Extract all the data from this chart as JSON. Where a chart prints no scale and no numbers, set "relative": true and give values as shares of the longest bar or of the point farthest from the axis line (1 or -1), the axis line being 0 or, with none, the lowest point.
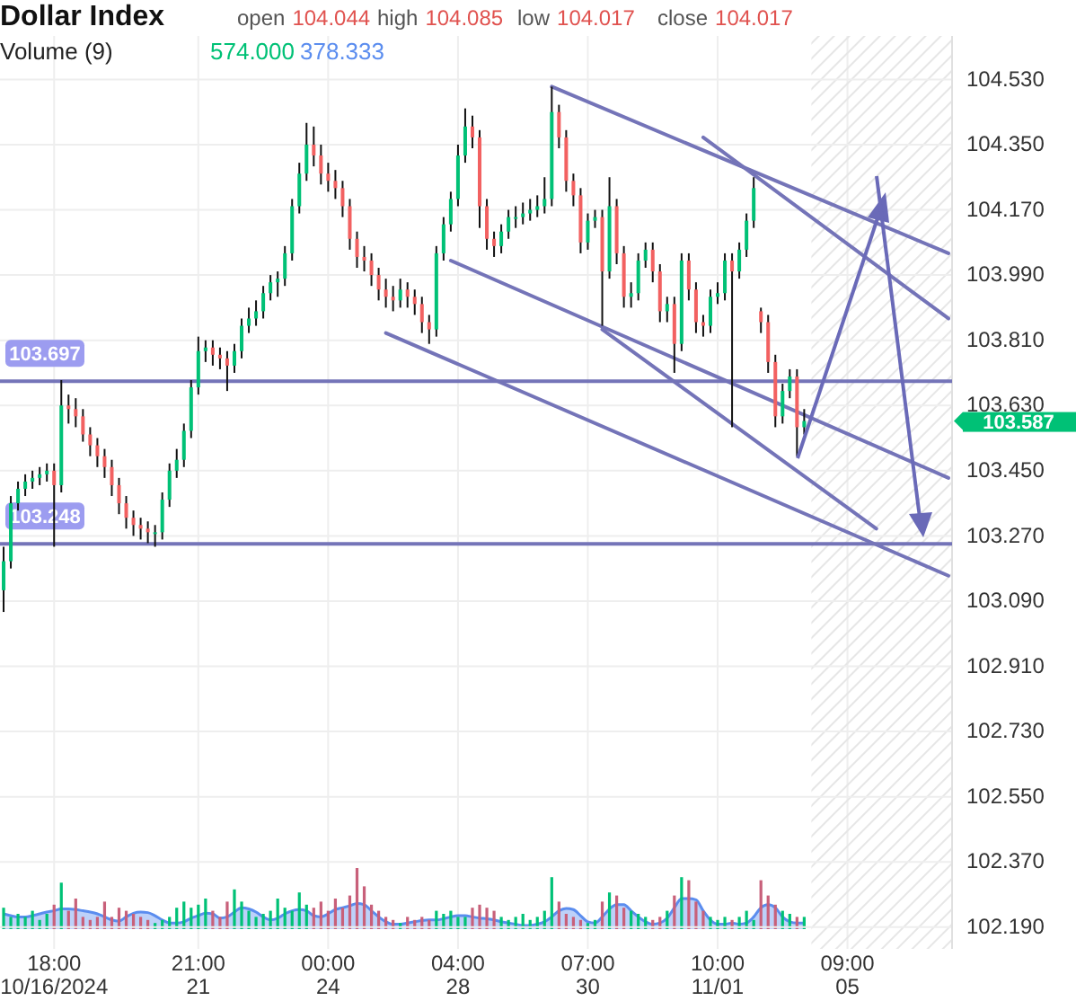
{
  "chart_data": [
    {
      "type": "candlestick",
      "title": "Dollar Index",
      "tick_labels": "y",
      "annotations": [
        "open 104.044",
        "high 104.085",
        "low 104.017",
        "close 104.017",
        "103.587"
      ],
      "categories": [
        null,
        null,
        null,
        null,
        null,
        null,
        null,
        null,
        null,
        null,
        null,
        null,
        null,
        null,
        null,
        null,
        null,
        null,
        null,
        null,
        null,
        null,
        null,
        null,
        null,
        null,
        null,
        null,
        null,
        null,
        null,
        null,
        null,
        null,
        null,
        null,
        null,
        null,
        null,
        null,
        null,
        null,
        null,
        null,
        null,
        null,
        null,
        null,
        null,
        null,
        null,
        null,
        null,
        null,
        null,
        null,
        null,
        null,
        null,
        null,
        null,
        null,
        null,
        null,
        null,
        null,
        null,
        null,
        null,
        null,
        null,
        null,
        null,
        null,
        null,
        null,
        null,
        null,
        null,
        null,
        null,
        null,
        null,
        null,
        null,
        null,
        null,
        null,
        null,
        null,
        null,
        null,
        null,
        null,
        null,
        null,
        null,
        null,
        null,
        null,
        null,
        null,
        null,
        null,
        null,
        null,
        null,
        null,
        null,
        null,
        null,
        null,
        null,
        null,
        null,
        null,
        null,
        null,
        null,
        null,
        null,
        null,
        null,
        null,
        null,
        null,
        null,
        null,
        null,
        null,
        null,
        null
      ],
      "ohlc": [
        [
          103.12,
          103.24,
          103.06,
          103.2
        ],
        [
          103.2,
          103.38,
          103.18,
          103.36
        ],
        [
          103.36,
          103.42,
          103.34,
          103.4
        ],
        [
          103.4,
          103.44,
          103.38,
          103.42
        ],
        [
          103.42,
          103.45,
          103.4,
          103.43
        ],
        [
          103.43,
          103.46,
          103.41,
          103.44
        ],
        [
          103.44,
          103.47,
          103.42,
          103.45
        ],
        [
          103.45,
          103.47,
          103.24,
          103.41
        ],
        [
          103.41,
          103.7,
          103.39,
          103.63
        ],
        [
          103.63,
          103.66,
          103.58,
          103.62
        ],
        [
          103.62,
          103.65,
          103.57,
          103.6
        ],
        [
          103.6,
          103.62,
          103.53,
          103.55
        ],
        [
          103.55,
          103.57,
          103.49,
          103.52
        ],
        [
          103.52,
          103.54,
          103.46,
          103.49
        ],
        [
          103.49,
          103.51,
          103.43,
          103.46
        ],
        [
          103.46,
          103.48,
          103.38,
          103.41
        ],
        [
          103.41,
          103.43,
          103.33,
          103.36
        ],
        [
          103.36,
          103.38,
          103.29,
          103.32
        ],
        [
          103.32,
          103.34,
          103.27,
          103.3
        ],
        [
          103.3,
          103.32,
          103.26,
          103.29
        ],
        [
          103.29,
          103.31,
          103.25,
          103.28
        ],
        [
          103.28,
          103.3,
          103.24,
          103.28
        ],
        [
          103.28,
          103.39,
          103.26,
          103.37
        ],
        [
          103.37,
          103.47,
          103.35,
          103.45
        ],
        [
          103.45,
          103.51,
          103.43,
          103.48
        ],
        [
          103.48,
          103.58,
          103.46,
          103.56
        ],
        [
          103.56,
          103.7,
          103.54,
          103.68
        ],
        [
          103.68,
          103.82,
          103.66,
          103.78
        ],
        [
          103.78,
          103.81,
          103.75,
          103.79
        ],
        [
          103.79,
          103.81,
          103.74,
          103.77
        ],
        [
          103.77,
          103.79,
          103.73,
          103.76
        ],
        [
          103.76,
          103.78,
          103.67,
          103.74
        ],
        [
          103.74,
          103.8,
          103.72,
          103.78
        ],
        [
          103.78,
          103.87,
          103.76,
          103.85
        ],
        [
          103.85,
          103.9,
          103.83,
          103.87
        ],
        [
          103.87,
          103.92,
          103.85,
          103.89
        ],
        [
          103.89,
          103.96,
          103.87,
          103.94
        ],
        [
          103.94,
          103.99,
          103.92,
          103.97
        ],
        [
          103.97,
          104.0,
          103.93,
          103.98
        ],
        [
          103.98,
          104.07,
          103.96,
          104.05
        ],
        [
          104.05,
          104.2,
          104.03,
          104.18
        ],
        [
          104.18,
          104.3,
          104.16,
          104.27
        ],
        [
          104.27,
          104.41,
          104.25,
          104.35
        ],
        [
          104.35,
          104.4,
          104.29,
          104.32
        ],
        [
          104.32,
          104.35,
          104.24,
          104.27
        ],
        [
          104.27,
          104.3,
          104.22,
          104.25
        ],
        [
          104.25,
          104.28,
          104.2,
          104.23
        ],
        [
          104.23,
          104.25,
          104.15,
          104.18
        ],
        [
          104.18,
          104.2,
          104.06,
          104.09
        ],
        [
          104.09,
          104.11,
          104.01,
          104.04
        ],
        [
          104.04,
          104.07,
          104.0,
          104.03
        ],
        [
          104.03,
          104.05,
          103.96,
          103.99
        ],
        [
          103.99,
          104.01,
          103.92,
          103.95
        ],
        [
          103.95,
          103.98,
          103.9,
          103.93
        ],
        [
          103.93,
          103.96,
          103.89,
          103.92
        ],
        [
          103.92,
          103.98,
          103.9,
          103.95
        ],
        [
          103.95,
          103.97,
          103.9,
          103.93
        ],
        [
          103.93,
          103.95,
          103.88,
          103.91
        ],
        [
          103.91,
          103.93,
          103.83,
          103.86
        ],
        [
          103.86,
          103.88,
          103.8,
          103.84
        ],
        [
          103.84,
          104.07,
          103.82,
          104.05
        ],
        [
          104.05,
          104.15,
          104.03,
          104.13
        ],
        [
          104.13,
          104.22,
          104.11,
          104.2
        ],
        [
          104.2,
          104.35,
          104.18,
          104.32
        ],
        [
          104.32,
          104.45,
          104.3,
          104.4
        ],
        [
          104.4,
          104.43,
          104.34,
          104.37
        ],
        [
          104.37,
          104.39,
          104.12,
          104.18
        ],
        [
          104.18,
          104.2,
          104.06,
          104.09
        ],
        [
          104.09,
          104.11,
          104.04,
          104.07
        ],
        [
          104.07,
          104.13,
          104.05,
          104.11
        ],
        [
          104.11,
          104.17,
          104.09,
          104.15
        ],
        [
          104.15,
          104.18,
          104.12,
          104.15
        ],
        [
          104.15,
          104.19,
          104.13,
          104.16
        ],
        [
          104.16,
          104.2,
          104.14,
          104.17
        ],
        [
          104.17,
          104.21,
          104.15,
          104.18
        ],
        [
          104.18,
          104.26,
          104.16,
          104.2
        ],
        [
          104.2,
          104.51,
          104.18,
          104.44
        ],
        [
          104.44,
          104.46,
          104.34,
          104.37
        ],
        [
          104.37,
          104.39,
          104.22,
          104.25
        ],
        [
          104.25,
          104.27,
          104.18,
          104.21
        ],
        [
          104.21,
          104.23,
          104.05,
          104.08
        ],
        [
          104.08,
          104.16,
          104.06,
          104.14
        ],
        [
          104.14,
          104.17,
          104.12,
          104.15
        ],
        [
          104.15,
          104.17,
          103.85,
          104.0
        ],
        [
          104.0,
          104.26,
          103.98,
          104.18
        ],
        [
          104.18,
          104.2,
          104.02,
          104.05
        ],
        [
          104.05,
          104.07,
          103.9,
          103.93
        ],
        [
          103.93,
          103.97,
          103.9,
          103.94
        ],
        [
          103.94,
          104.05,
          103.92,
          104.03
        ],
        [
          104.03,
          104.08,
          104.01,
          104.06
        ],
        [
          104.06,
          104.08,
          103.97,
          104.0
        ],
        [
          104.0,
          104.02,
          103.86,
          103.89
        ],
        [
          103.89,
          103.93,
          103.86,
          103.91
        ],
        [
          103.91,
          103.93,
          103.72,
          103.8
        ],
        [
          103.8,
          104.05,
          103.78,
          104.03
        ],
        [
          104.03,
          104.05,
          103.92,
          103.95
        ],
        [
          103.95,
          103.97,
          103.83,
          103.86
        ],
        [
          103.86,
          103.88,
          103.82,
          103.85
        ],
        [
          103.85,
          103.95,
          103.83,
          103.93
        ],
        [
          103.93,
          103.97,
          103.91,
          103.94
        ],
        [
          103.94,
          104.05,
          103.92,
          104.03
        ],
        [
          104.03,
          104.05,
          103.57,
          104.0
        ],
        [
          104.0,
          104.08,
          103.98,
          104.06
        ],
        [
          104.06,
          104.16,
          104.04,
          104.14
        ],
        [
          104.14,
          104.26,
          104.12,
          104.23
        ],
        [
          103.89,
          103.9,
          103.83,
          103.86
        ],
        [
          103.86,
          103.88,
          103.72,
          103.75
        ],
        [
          103.75,
          103.77,
          103.57,
          103.6
        ],
        [
          103.6,
          103.69,
          103.58,
          103.67
        ],
        [
          103.67,
          103.73,
          103.65,
          103.71
        ],
        [
          103.71,
          103.73,
          103.49,
          103.57
        ],
        [
          103.57,
          103.62,
          103.55,
          103.587
        ],
        null,
        null,
        null,
        null,
        null,
        null,
        null,
        null,
        null,
        null,
        null,
        null,
        null,
        null,
        null,
        null,
        null,
        null,
        null,
        null
      ],
      "colors": [
        "#00c176",
        "#00c176",
        "#00c176",
        "#00c176",
        "#00c176",
        "#00c176",
        "#00c176",
        "#f26161",
        "#00c176",
        "#f26161",
        "#f26161",
        "#f26161",
        "#f26161",
        "#f26161",
        "#f26161",
        "#f26161",
        "#f26161",
        "#f26161",
        "#f26161",
        "#f26161",
        "#f26161",
        "#00c176",
        "#00c176",
        "#00c176",
        "#00c176",
        "#00c176",
        "#00c176",
        "#00c176",
        "#00c176",
        "#f26161",
        "#f26161",
        "#f26161",
        "#00c176",
        "#00c176",
        "#00c176",
        "#00c176",
        "#00c176",
        "#00c176",
        "#00c176",
        "#00c176",
        "#00c176",
        "#00c176",
        "#00c176",
        "#f26161",
        "#f26161",
        "#f26161",
        "#f26161",
        "#f26161",
        "#f26161",
        "#f26161",
        "#f26161",
        "#f26161",
        "#f26161",
        "#f26161",
        "#f26161",
        "#00c176",
        "#f26161",
        "#f26161",
        "#f26161",
        "#f26161",
        "#00c176",
        "#00c176",
        "#00c176",
        "#00c176",
        "#00c176",
        "#f26161",
        "#f26161",
        "#f26161",
        "#f26161",
        "#00c176",
        "#00c176",
        "#00c176",
        "#00c176",
        "#00c176",
        "#00c176",
        "#00c176",
        "#00c176",
        "#f26161",
        "#f26161",
        "#f26161",
        "#f26161",
        "#00c176",
        "#00c176",
        "#f26161",
        "#00c176",
        "#f26161",
        "#f26161",
        "#00c176",
        "#00c176",
        "#00c176",
        "#f26161",
        "#f26161",
        "#00c176",
        "#f26161",
        "#00c176",
        "#f26161",
        "#f26161",
        "#f26161",
        "#00c176",
        "#00c176",
        "#00c176",
        "#f26161",
        "#00c176",
        "#00c176",
        "#00c176",
        "#f26161",
        "#f26161",
        "#f26161",
        "#00c176",
        "#00c176",
        "#f26161",
        "#00c176",
        null,
        null,
        null,
        null,
        null,
        null,
        null,
        null,
        null,
        null,
        null,
        null,
        null,
        null,
        null,
        null,
        null,
        null,
        null,
        null
      ],
      "series": [
        {
          "type": "line",
          "color": "#7474b8",
          "values": [
            null,
            null,
            null,
            null,
            null,
            null,
            null,
            null,
            null,
            null,
            null,
            null,
            null,
            null,
            null,
            null,
            null,
            null,
            null,
            null,
            null,
            null,
            null,
            null,
            null,
            null,
            null,
            null,
            null,
            null,
            null,
            null,
            null,
            null,
            null,
            null,
            null,
            null,
            null,
            null,
            null,
            null,
            null,
            null,
            null,
            null,
            null,
            null,
            null,
            null,
            null,
            null,
            null,
            null,
            null,
            null,
            null,
            null,
            null,
            null,
            null,
            null,
            null,
            null,
            null,
            null,
            null,
            null,
            null,
            null,
            null,
            null,
            null,
            null,
            null,
            null,
            104.51,
            null,
            null,
            null,
            null,
            null,
            null,
            null,
            null,
            null,
            null,
            null,
            null,
            null,
            null,
            null,
            null,
            null,
            null,
            null,
            null,
            null,
            null,
            null,
            null,
            null,
            null,
            null,
            null,
            null,
            null,
            null,
            null,
            null,
            null,
            null,
            null,
            null,
            null,
            null,
            null,
            null,
            null,
            null,
            null,
            null,
            null,
            null,
            null,
            null,
            null,
            null,
            null,
            null,
            null,
            104.05
          ]
        },
        {
          "type": "line",
          "color": "#7474b8",
          "values": [
            null,
            null,
            null,
            null,
            null,
            null,
            null,
            null,
            null,
            null,
            null,
            null,
            null,
            null,
            null,
            null,
            null,
            null,
            null,
            null,
            null,
            null,
            null,
            null,
            null,
            null,
            null,
            null,
            null,
            null,
            null,
            null,
            null,
            null,
            null,
            null,
            null,
            null,
            null,
            null,
            null,
            null,
            null,
            null,
            null,
            null,
            null,
            null,
            null,
            null,
            null,
            null,
            null,
            null,
            null,
            null,
            null,
            null,
            null,
            null,
            null,
            null,
            null,
            null,
            null,
            null,
            null,
            null,
            null,
            null,
            null,
            null,
            null,
            null,
            null,
            null,
            null,
            null,
            null,
            null,
            null,
            null,
            null,
            null,
            null,
            null,
            null,
            null,
            null,
            null,
            null,
            null,
            null,
            null,
            null,
            null,
            null,
            104.37,
            null,
            null,
            null,
            null,
            null,
            null,
            null,
            null,
            null,
            null,
            null,
            null,
            null,
            null,
            null,
            null,
            null,
            null,
            null,
            null,
            null,
            null,
            null,
            null,
            null,
            null,
            null,
            null,
            null,
            null,
            null,
            null,
            null,
            103.87
          ]
        },
        {
          "type": "line",
          "color": "#7474b8",
          "values": [
            null,
            null,
            null,
            null,
            null,
            null,
            null,
            null,
            null,
            null,
            null,
            null,
            null,
            null,
            null,
            null,
            null,
            null,
            null,
            null,
            null,
            null,
            null,
            null,
            null,
            null,
            null,
            null,
            null,
            null,
            null,
            null,
            null,
            null,
            null,
            null,
            null,
            null,
            null,
            null,
            null,
            null,
            null,
            null,
            null,
            null,
            null,
            null,
            null,
            null,
            null,
            null,
            null,
            null,
            null,
            null,
            null,
            null,
            null,
            null,
            null,
            null,
            104.03,
            null,
            null,
            null,
            null,
            null,
            null,
            null,
            null,
            null,
            null,
            null,
            null,
            null,
            null,
            null,
            null,
            null,
            null,
            null,
            null,
            null,
            null,
            null,
            null,
            null,
            null,
            null,
            null,
            null,
            null,
            null,
            null,
            null,
            null,
            null,
            null,
            null,
            null,
            null,
            null,
            null,
            null,
            null,
            null,
            null,
            null,
            null,
            null,
            null,
            null,
            null,
            null,
            null,
            null,
            null,
            null,
            null,
            null,
            null,
            null,
            null,
            null,
            null,
            null,
            null,
            null,
            null,
            null,
            103.43
          ]
        },
        {
          "type": "line",
          "color": "#7474b8",
          "values": [
            null,
            null,
            null,
            null,
            null,
            null,
            null,
            null,
            null,
            null,
            null,
            null,
            null,
            null,
            null,
            null,
            null,
            null,
            null,
            null,
            null,
            null,
            null,
            null,
            null,
            null,
            null,
            null,
            null,
            null,
            null,
            null,
            null,
            null,
            null,
            null,
            null,
            null,
            null,
            null,
            null,
            null,
            null,
            null,
            null,
            null,
            null,
            null,
            null,
            null,
            null,
            null,
            null,
            null,
            null,
            null,
            null,
            null,
            null,
            null,
            null,
            null,
            null,
            null,
            null,
            null,
            null,
            null,
            null,
            null,
            null,
            null,
            null,
            null,
            null,
            null,
            null,
            null,
            null,
            null,
            null,
            null,
            null,
            103.84,
            null,
            null,
            null,
            null,
            null,
            null,
            null,
            null,
            null,
            null,
            null,
            null,
            null,
            null,
            null,
            null,
            null,
            null,
            null,
            null,
            null,
            null,
            null,
            null,
            null,
            null,
            null,
            null,
            null,
            null,
            null,
            null,
            null,
            null,
            null,
            null,
            null,
            103.29,
            null,
            null,
            null,
            null,
            null,
            null,
            null,
            null,
            null,
            null
          ]
        },
        {
          "type": "line",
          "color": "#7474b8",
          "values": [
            null,
            null,
            null,
            null,
            null,
            null,
            null,
            null,
            null,
            null,
            null,
            null,
            null,
            null,
            null,
            null,
            null,
            null,
            null,
            null,
            null,
            null,
            null,
            null,
            null,
            null,
            null,
            null,
            null,
            null,
            null,
            null,
            null,
            null,
            null,
            null,
            null,
            null,
            null,
            null,
            null,
            null,
            null,
            null,
            null,
            null,
            null,
            null,
            null,
            null,
            null,
            null,
            null,
            103.83,
            null,
            null,
            null,
            null,
            null,
            null,
            null,
            null,
            null,
            null,
            null,
            null,
            null,
            null,
            null,
            null,
            null,
            null,
            null,
            null,
            null,
            null,
            null,
            null,
            null,
            null,
            null,
            null,
            null,
            null,
            null,
            null,
            null,
            null,
            null,
            null,
            null,
            null,
            null,
            null,
            null,
            null,
            null,
            null,
            null,
            null,
            null,
            null,
            null,
            null,
            null,
            null,
            null,
            null,
            null,
            null,
            null,
            null,
            null,
            null,
            null,
            null,
            null,
            null,
            null,
            null,
            null,
            null,
            null,
            null,
            null,
            null,
            null,
            null,
            null,
            null,
            null,
            103.16
          ]
        }
      ],
      "ref_lines": [
        {
          "axis": "y",
          "value": 103.697,
          "label": "103.697",
          "color": "#7474b8"
        },
        {
          "axis": "y",
          "value": 103.248,
          "label": "103.248",
          "color": "#7474b8"
        }
      ],
      "ylim": [
        102.13,
        104.65
      ],
      "yticks": [
        {
          "value": 104.53,
          "label": "104.530"
        },
        {
          "value": 104.35,
          "label": "104.350"
        },
        {
          "value": 104.17,
          "label": "104.170"
        },
        {
          "value": 103.99,
          "label": "103.990"
        },
        {
          "value": 103.81,
          "label": "103.810"
        },
        {
          "value": 103.63,
          "label": "103.630"
        },
        {
          "value": 103.45,
          "label": "103.450"
        },
        {
          "value": 103.27,
          "label": "103.270"
        },
        {
          "value": 103.09,
          "label": "103.090"
        },
        {
          "value": 102.91,
          "label": "102.910"
        },
        {
          "value": 102.73,
          "label": "102.730"
        },
        {
          "value": 102.55,
          "label": "102.550"
        },
        {
          "value": 102.37,
          "label": "102.370"
        },
        {
          "value": 102.19,
          "label": "102.190"
        }
      ],
      "grid": "y"
    },
    {
      "type": "bar",
      "title": "Volume (9)",
      "annotations": [
        "574.000",
        "378.333"
      ],
      "relative": true,
      "tick_labels": "x",
      "grid": "x",
      "categories": [
        null,
        null,
        null,
        null,
        null,
        null,
        null,
        "18:00\n10/16/2024",
        null,
        null,
        null,
        null,
        null,
        null,
        null,
        null,
        null,
        null,
        null,
        null,
        null,
        null,
        null,
        null,
        null,
        null,
        null,
        "21:00\n21",
        null,
        null,
        null,
        null,
        null,
        null,
        null,
        null,
        null,
        null,
        null,
        null,
        null,
        null,
        null,
        null,
        null,
        "00:00\n24",
        null,
        null,
        null,
        null,
        null,
        null,
        null,
        null,
        null,
        null,
        null,
        null,
        null,
        null,
        null,
        null,
        null,
        "04:00\n28",
        null,
        null,
        null,
        null,
        null,
        null,
        null,
        null,
        null,
        null,
        null,
        null,
        null,
        null,
        null,
        null,
        null,
        "07:00\n30",
        null,
        null,
        null,
        null,
        null,
        null,
        null,
        null,
        null,
        null,
        null,
        null,
        null,
        null,
        null,
        null,
        null,
        "10:00\n11/01",
        null,
        null,
        null,
        null,
        null,
        null,
        null,
        null,
        null,
        null,
        null,
        null,
        null,
        null,
        null,
        null,
        null,
        "09:00\n05",
        null,
        null,
        null,
        null,
        null,
        null,
        null,
        null,
        null,
        null,
        null,
        null,
        null,
        null
      ],
      "series": [
        {
          "type": "bar",
          "colors": [
            "#00c176",
            "#00c176",
            "#00c176",
            "#00c176",
            "#00c176",
            "#00c176",
            "#00c176",
            "#c8607a",
            "#00c176",
            "#c8607a",
            "#c8607a",
            "#c8607a",
            "#c8607a",
            "#c8607a",
            "#c8607a",
            "#c8607a",
            "#c8607a",
            "#c8607a",
            "#c8607a",
            "#c8607a",
            "#c8607a",
            "#00c176",
            "#00c176",
            "#00c176",
            "#00c176",
            "#00c176",
            "#00c176",
            "#00c176",
            "#00c176",
            "#c8607a",
            "#c8607a",
            "#c8607a",
            "#00c176",
            "#00c176",
            "#00c176",
            "#00c176",
            "#00c176",
            "#00c176",
            "#00c176",
            "#00c176",
            "#00c176",
            "#00c176",
            "#00c176",
            "#c8607a",
            "#c8607a",
            "#c8607a",
            "#c8607a",
            "#c8607a",
            "#c8607a",
            "#c8607a",
            "#c8607a",
            "#c8607a",
            "#c8607a",
            "#c8607a",
            "#c8607a",
            "#00c176",
            "#c8607a",
            "#c8607a",
            "#c8607a",
            "#c8607a",
            "#00c176",
            "#00c176",
            "#00c176",
            "#00c176",
            "#00c176",
            "#c8607a",
            "#c8607a",
            "#c8607a",
            "#c8607a",
            "#00c176",
            "#00c176",
            "#00c176",
            "#00c176",
            "#00c176",
            "#00c176",
            "#00c176",
            "#00c176",
            "#c8607a",
            "#c8607a",
            "#c8607a",
            "#c8607a",
            "#00c176",
            "#00c176",
            "#c8607a",
            "#00c176",
            "#c8607a",
            "#c8607a",
            "#00c176",
            "#00c176",
            "#00c176",
            "#c8607a",
            "#c8607a",
            "#00c176",
            "#c8607a",
            "#00c176",
            "#c8607a",
            "#c8607a",
            "#c8607a",
            "#00c176",
            "#00c176",
            "#00c176",
            "#c8607a",
            "#00c176",
            "#00c176",
            "#00c176",
            "#c8607a",
            "#c8607a",
            "#c8607a",
            "#00c176",
            "#00c176",
            "#c8607a",
            "#00c176",
            null,
            null,
            null,
            null,
            null,
            null,
            null,
            null,
            null,
            null,
            null,
            null,
            null,
            null,
            null,
            null,
            null,
            null,
            null,
            null
          ],
          "values": [
            0.35,
            0.2,
            0.25,
            0.2,
            0.3,
            0.15,
            0.25,
            0.4,
            0.76,
            0.3,
            0.5,
            0.2,
            0.15,
            0.2,
            0.45,
            0.2,
            0.35,
            0.3,
            0.25,
            0.2,
            0.15,
            0.1,
            0.15,
            0.2,
            0.35,
            0.45,
            0.35,
            0.4,
            0.5,
            0.3,
            0.2,
            0.45,
            0.65,
            0.45,
            0.3,
            0.2,
            0.25,
            0.3,
            0.5,
            0.35,
            0.3,
            0.6,
            0.4,
            0.35,
            0.45,
            0.3,
            0.5,
            0.35,
            0.55,
            1.0,
            0.7,
            0.4,
            0.3,
            0.2,
            0.15,
            0.1,
            0.2,
            0.15,
            0.2,
            0.15,
            0.3,
            0.25,
            0.3,
            0.2,
            0.2,
            0.35,
            0.4,
            0.35,
            0.3,
            0.2,
            0.15,
            0.2,
            0.25,
            0.15,
            0.2,
            0.3,
            0.85,
            0.45,
            0.25,
            0.2,
            0.15,
            0.1,
            0.15,
            0.45,
            0.6,
            0.55,
            0.35,
            0.3,
            0.25,
            0.2,
            0.15,
            0.2,
            0.3,
            0.55,
            0.85,
            0.8,
            0.45,
            0.3,
            0.2,
            0.15,
            0.2,
            0.15,
            0.2,
            0.3,
            0.15,
            0.8,
            0.55,
            0.4,
            0.3,
            0.25,
            0.2,
            0.2,
            null,
            null,
            null,
            null,
            null,
            null,
            null,
            null,
            null,
            null,
            null,
            null,
            null,
            null,
            null,
            null,
            null,
            null,
            null,
            null
          ]
        },
        {
          "type": "area",
          "color": "#5b8def",
          "values": [
            0.25,
            0.22,
            0.2,
            0.2,
            0.22,
            0.25,
            0.28,
            0.3,
            0.33,
            0.33,
            0.32,
            0.3,
            0.28,
            0.25,
            0.2,
            0.15,
            0.13,
            0.2,
            0.26,
            0.28,
            0.27,
            0.22,
            0.15,
            0.1,
            0.1,
            0.12,
            0.18,
            0.22,
            0.26,
            0.25,
            0.18,
            0.2,
            0.28,
            0.35,
            0.33,
            0.28,
            0.2,
            0.15,
            0.18,
            0.25,
            0.3,
            0.32,
            0.3,
            0.22,
            0.2,
            0.25,
            0.32,
            0.35,
            0.38,
            0.42,
            0.4,
            0.3,
            0.2,
            0.12,
            0.08,
            0.08,
            0.1,
            0.12,
            0.14,
            0.15,
            0.15,
            0.17,
            0.2,
            0.22,
            0.22,
            0.2,
            0.18,
            0.17,
            0.15,
            0.12,
            0.1,
            0.08,
            0.06,
            0.06,
            0.08,
            0.12,
            0.2,
            0.3,
            0.34,
            0.32,
            0.22,
            0.12,
            0.1,
            0.2,
            0.33,
            0.4,
            0.4,
            0.3,
            0.2,
            0.12,
            0.08,
            0.1,
            0.18,
            0.35,
            0.5,
            0.5,
            0.48,
            0.3,
            0.15,
            0.08,
            0.08,
            0.1,
            0.08,
            0.1,
            0.2,
            0.35,
            0.4,
            0.35,
            0.2,
            0.12,
            0.1,
            0.1,
            null,
            null,
            null,
            null,
            null,
            null,
            null,
            null,
            null,
            null,
            null,
            null,
            null,
            null,
            null,
            null,
            null,
            null,
            null,
            null
          ]
        }
      ]
    }
  ]
}
